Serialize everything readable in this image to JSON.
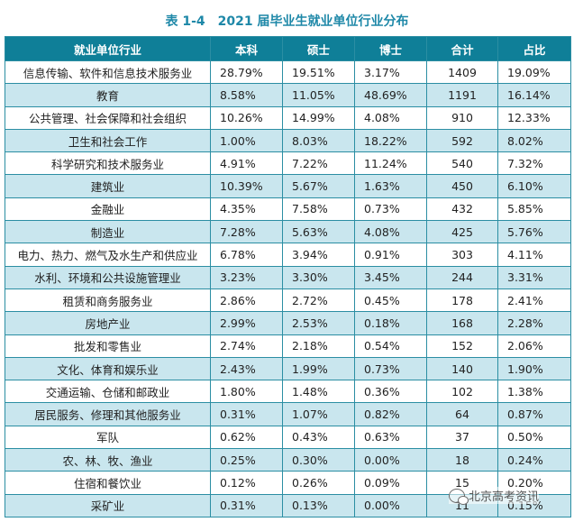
{
  "title": "表 1-4　2021 届毕业生就业单位行业分布",
  "headers": [
    "就业单位行业",
    "本科",
    "硕士",
    "博士",
    "合计",
    "占比"
  ],
  "rows": [
    [
      "信息传输、软件和信息技术服务业",
      "28.79%",
      "19.51%",
      "3.17%",
      "1409",
      "19.09%"
    ],
    [
      "教育",
      "8.58%",
      "11.05%",
      "48.69%",
      "1191",
      "16.14%"
    ],
    [
      "公共管理、社会保障和社会组织",
      "10.26%",
      "14.99%",
      "4.08%",
      "910",
      "12.33%"
    ],
    [
      "卫生和社会工作",
      "1.00%",
      "8.03%",
      "18.22%",
      "592",
      "8.02%"
    ],
    [
      "科学研究和技术服务业",
      "4.91%",
      "7.22%",
      "11.24%",
      "540",
      "7.32%"
    ],
    [
      "建筑业",
      "10.39%",
      "5.67%",
      "1.63%",
      "450",
      "6.10%"
    ],
    [
      "金融业",
      "4.35%",
      "7.58%",
      "0.73%",
      "432",
      "5.85%"
    ],
    [
      "制造业",
      "7.28%",
      "5.63%",
      "4.08%",
      "425",
      "5.76%"
    ],
    [
      "电力、热力、燃气及水生产和供应业",
      "6.78%",
      "3.94%",
      "0.91%",
      "303",
      "4.11%"
    ],
    [
      "水利、环境和公共设施管理业",
      "3.23%",
      "3.30%",
      "3.45%",
      "244",
      "3.31%"
    ],
    [
      "租赁和商务服务业",
      "2.86%",
      "2.72%",
      "0.45%",
      "178",
      "2.41%"
    ],
    [
      "房地产业",
      "2.99%",
      "2.53%",
      "0.18%",
      "168",
      "2.28%"
    ],
    [
      "批发和零售业",
      "2.74%",
      "2.18%",
      "0.54%",
      "152",
      "2.06%"
    ],
    [
      "文化、体育和娱乐业",
      "2.43%",
      "1.99%",
      "0.73%",
      "140",
      "1.90%"
    ],
    [
      "交通运输、仓储和邮政业",
      "1.80%",
      "1.48%",
      "0.36%",
      "102",
      "1.38%"
    ],
    [
      "居民服务、修理和其他服务业",
      "0.31%",
      "1.07%",
      "0.82%",
      "64",
      "0.87%"
    ],
    [
      "军队",
      "0.62%",
      "0.43%",
      "0.63%",
      "37",
      "0.50%"
    ],
    [
      "农、林、牧、渔业",
      "0.25%",
      "0.30%",
      "0.00%",
      "18",
      "0.24%"
    ],
    [
      "住宿和餐饮业",
      "0.12%",
      "0.26%",
      "0.09%",
      "15",
      "0.20%"
    ],
    [
      "采矿业",
      "0.31%",
      "0.13%",
      "0.00%",
      "11",
      "0.15%"
    ]
  ],
  "watermark": "北京高考资讯",
  "colors": {
    "header_bg": "#0f7f98",
    "alt_row_bg": "#c9e6ee",
    "border": "#2b8ea3",
    "title": "#1e88a8"
  }
}
